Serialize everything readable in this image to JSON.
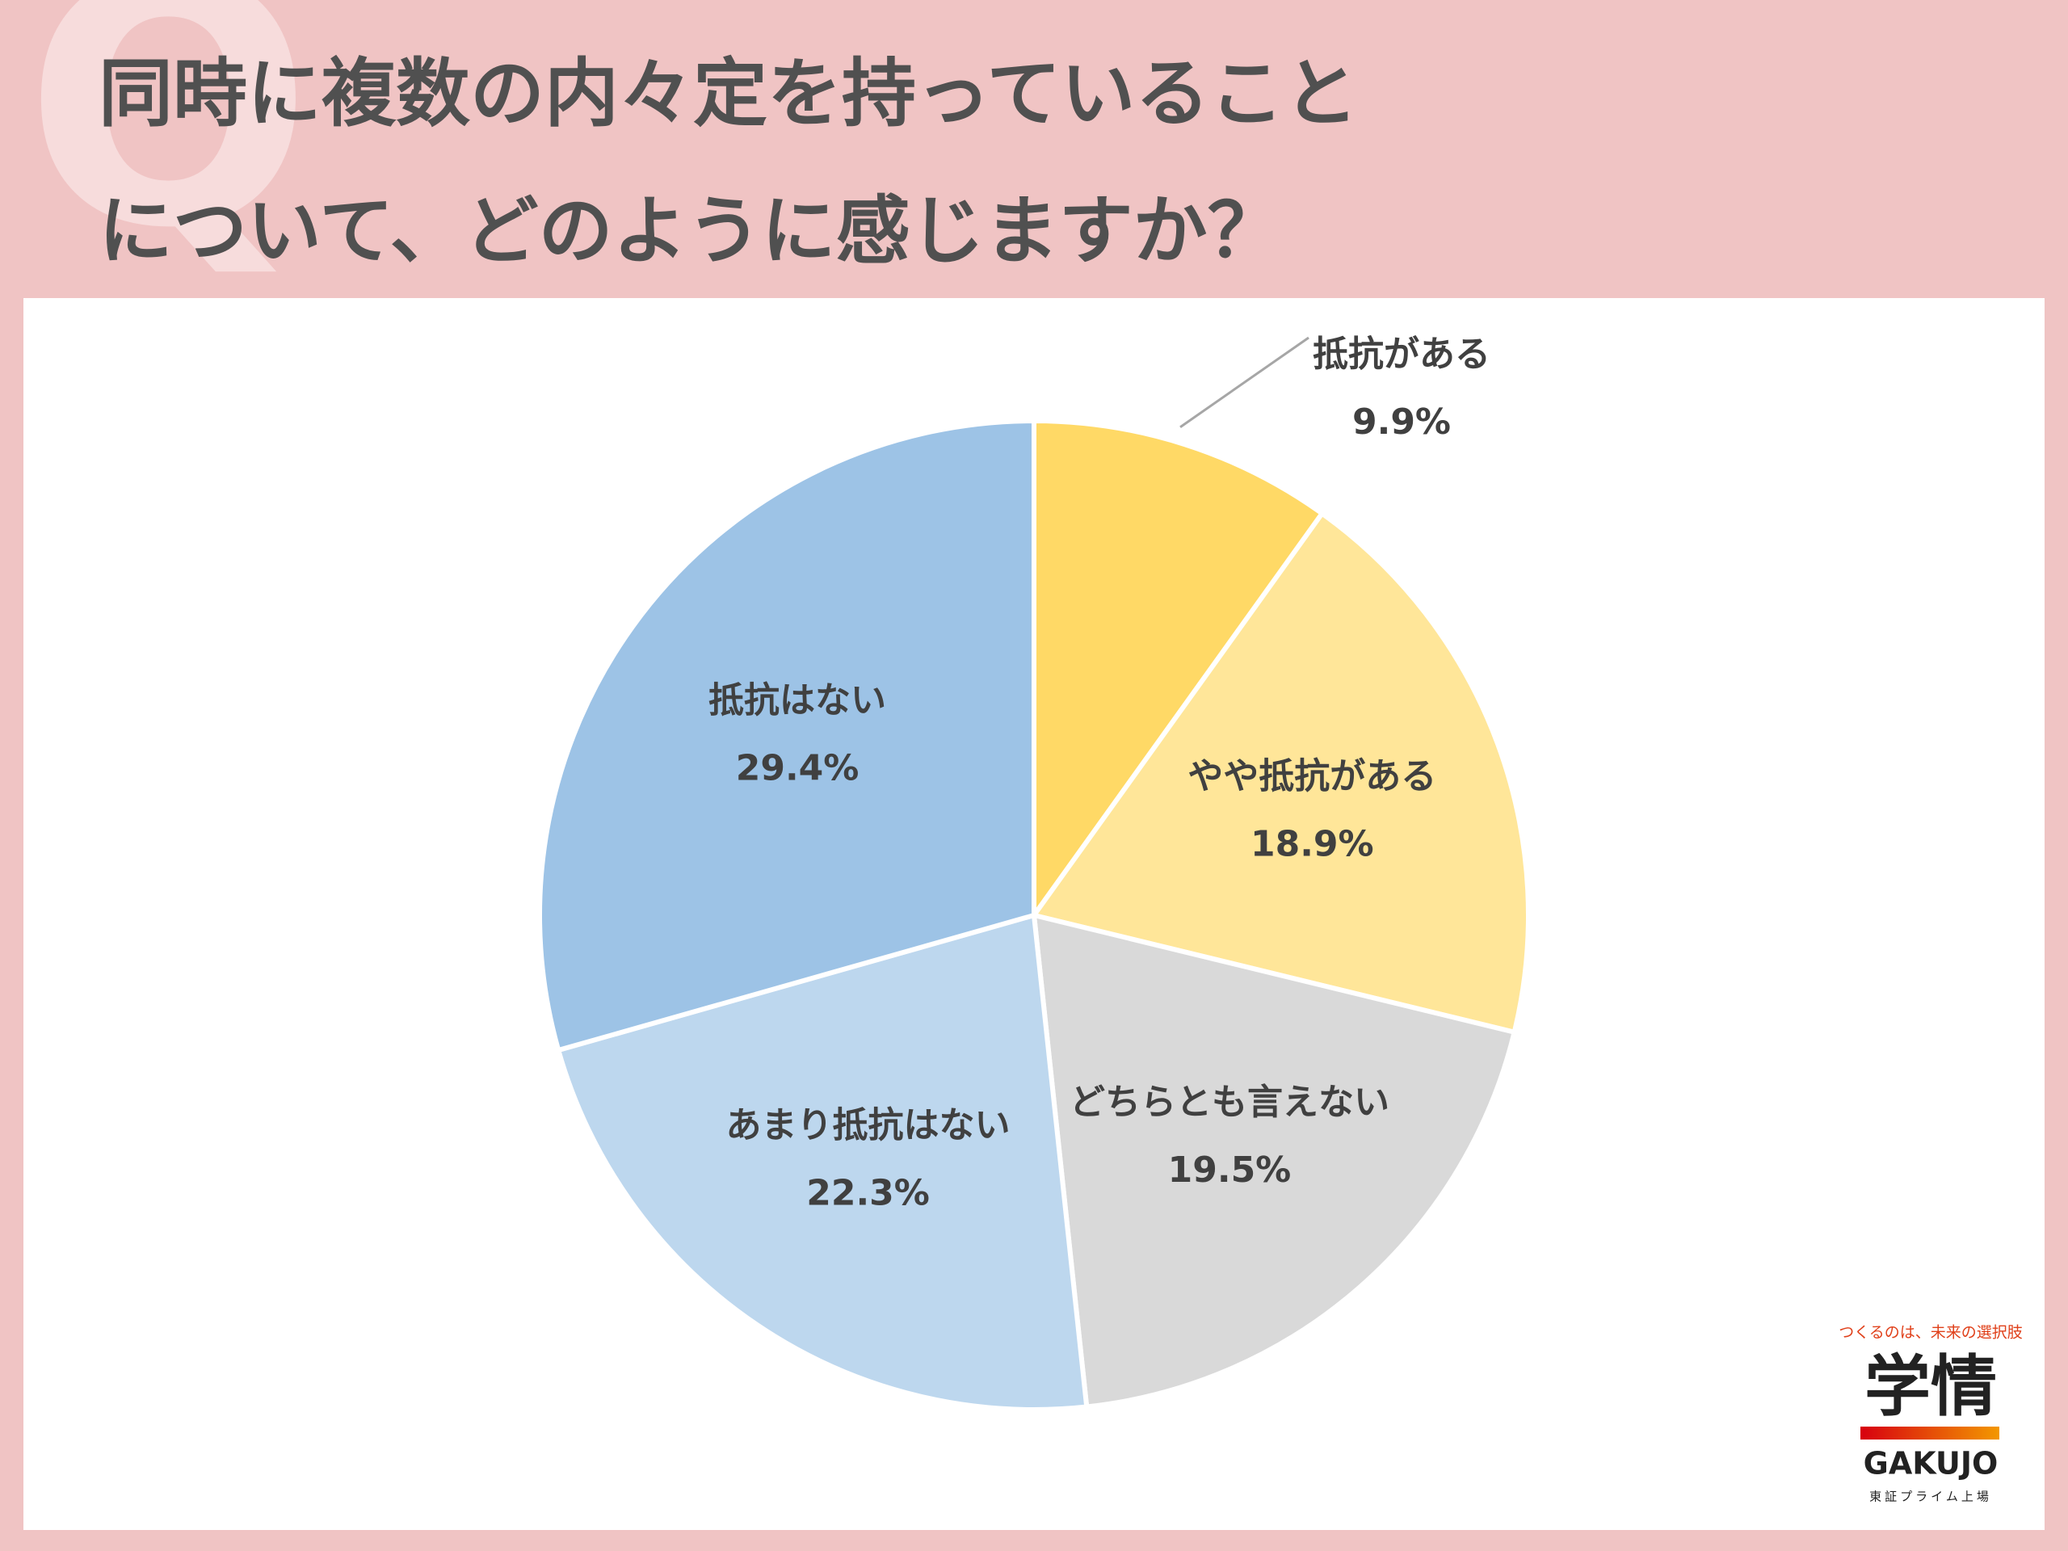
{
  "chart_data": {
    "type": "pie",
    "title": [
      "同時に複数の内々定を持っていること",
      "について、どのように感じますか？"
    ],
    "watermark": "Q",
    "categories": [
      "抵抗がある",
      "やや抵抗がある",
      "どちらとも言えない",
      "あまり抵抗はない",
      "抵抗はない"
    ],
    "values": [
      9.9,
      18.9,
      19.5,
      22.3,
      29.4
    ],
    "value_labels": [
      "9.9%",
      "18.9%",
      "19.5%",
      "22.3%",
      "29.4%"
    ],
    "colors": [
      "#ffd966",
      "#ffe699",
      "#d9d9d9",
      "#bdd7ee",
      "#9dc3e6"
    ]
  },
  "logo": {
    "tagline": "つくるのは、未来の選択肢",
    "name": "学情",
    "roman": "GAKUJO",
    "listing": "東証プライム上場"
  }
}
